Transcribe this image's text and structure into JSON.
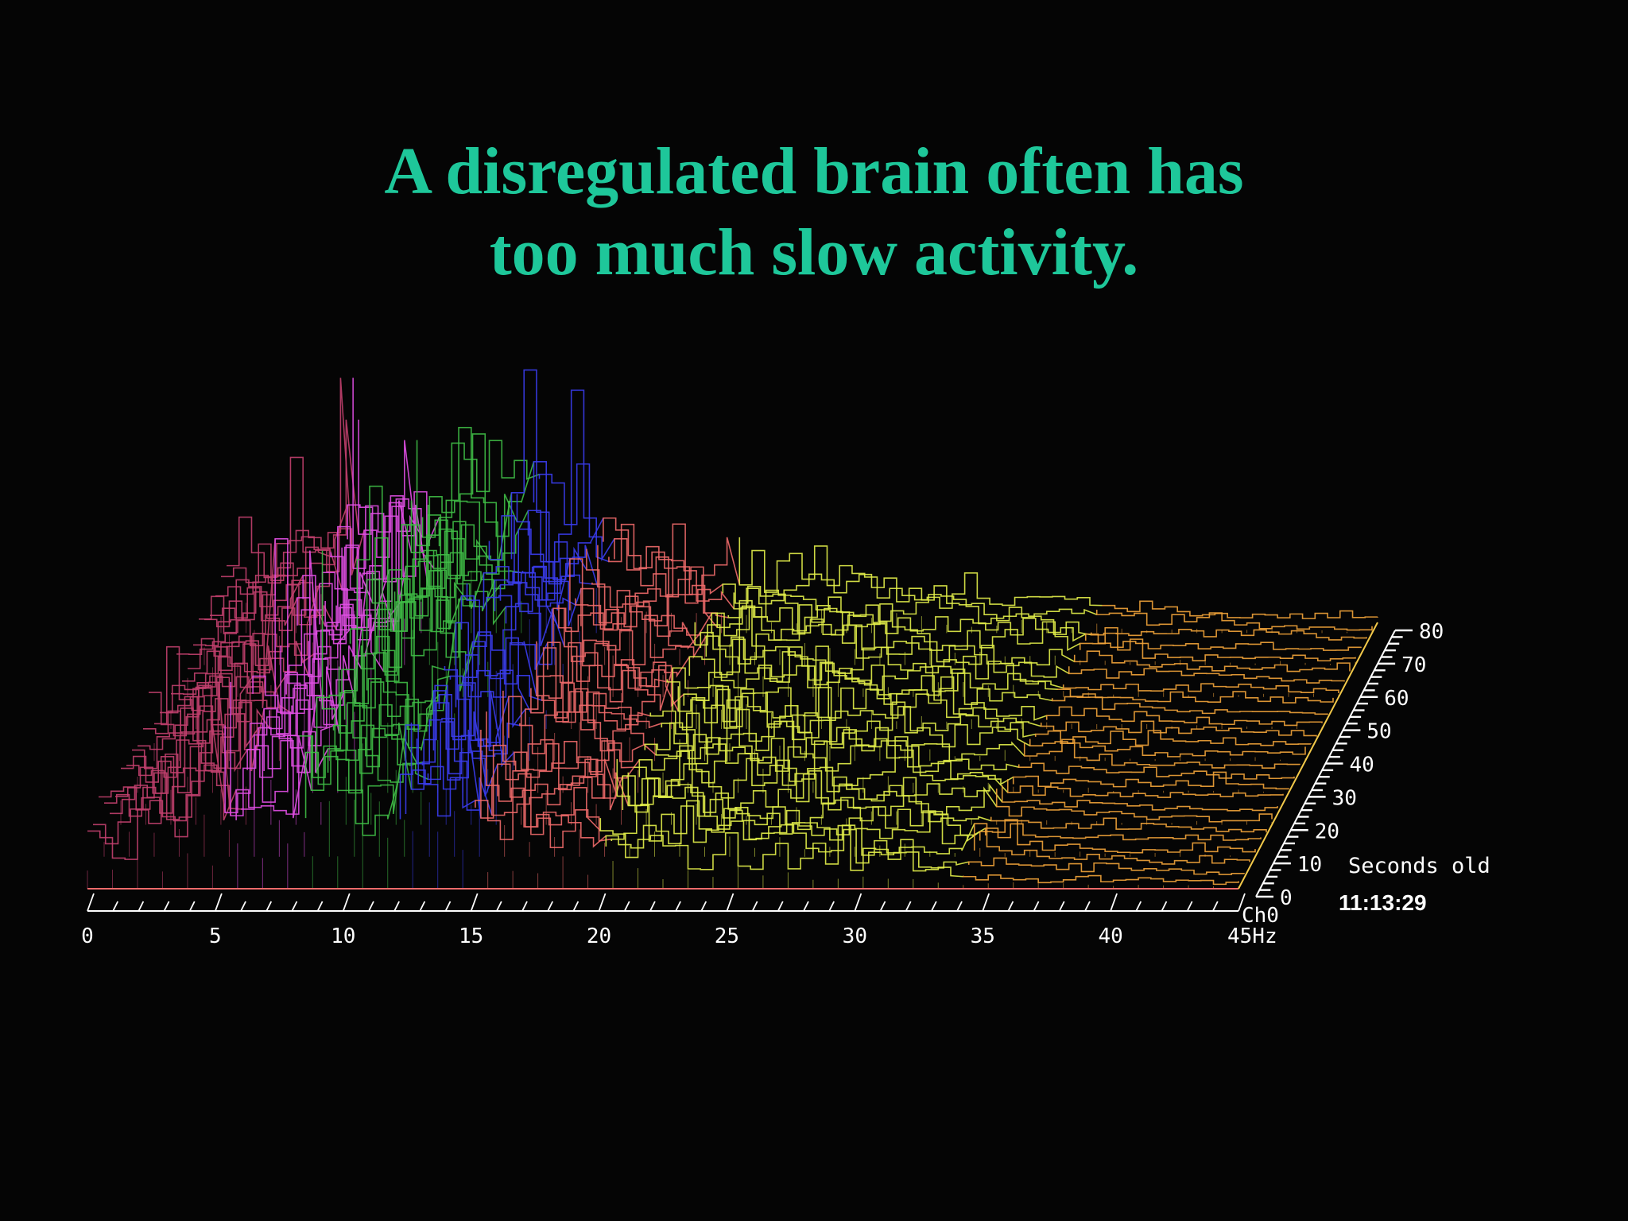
{
  "slide": {
    "title_line1": "A disregulated brain often has",
    "title_line2": "too much slow activity."
  },
  "colors": {
    "background": "#050505",
    "title": "#1ec79a",
    "axis": "#ffffff",
    "band_colors": [
      "#c2406e",
      "#e24fe6",
      "#3fbd46",
      "#3b3df0",
      "#ef6a6a",
      "#e3f04a",
      "#f2a43a"
    ]
  },
  "chart_data": {
    "type": "waterfall-spectrogram",
    "xlabel_unit": "Hz",
    "x_ticks": [
      "0",
      "5",
      "10",
      "15",
      "20",
      "25",
      "30",
      "35",
      "40",
      "45Hz"
    ],
    "xlim": [
      0,
      45
    ],
    "channel_label": "Ch0",
    "depth_ticks": [
      "0",
      "10",
      "20",
      "30",
      "40",
      "50",
      "60",
      "70",
      "80"
    ],
    "depth_label": "Seconds old",
    "depth_range": [
      0,
      80
    ],
    "timestamp": "11:13:29",
    "bands": [
      {
        "from_hz": 0,
        "to_hz": 5,
        "color": "#c2406e"
      },
      {
        "from_hz": 5,
        "to_hz": 8,
        "color": "#e24fe6"
      },
      {
        "from_hz": 8,
        "to_hz": 12,
        "color": "#3fbd46"
      },
      {
        "from_hz": 12,
        "to_hz": 15,
        "color": "#3b3df0"
      },
      {
        "from_hz": 15,
        "to_hz": 20,
        "color": "#ef6a6a"
      },
      {
        "from_hz": 20,
        "to_hz": 34,
        "color": "#e3f04a"
      },
      {
        "from_hz": 34,
        "to_hz": 45,
        "color": "#f2a43a"
      }
    ],
    "amplitude_profile": {
      "hz": [
        0,
        2,
        4,
        6,
        8,
        10,
        12,
        14,
        16,
        18,
        20,
        22,
        24,
        26,
        28,
        30,
        32,
        34,
        36,
        38,
        40,
        42,
        44,
        45
      ],
      "relative_amplitude": [
        0.35,
        0.55,
        0.7,
        0.85,
        0.95,
        1.0,
        0.92,
        0.8,
        0.62,
        0.5,
        0.42,
        0.38,
        0.35,
        0.3,
        0.26,
        0.22,
        0.18,
        0.14,
        0.1,
        0.08,
        0.07,
        0.06,
        0.05,
        0.05
      ]
    }
  }
}
